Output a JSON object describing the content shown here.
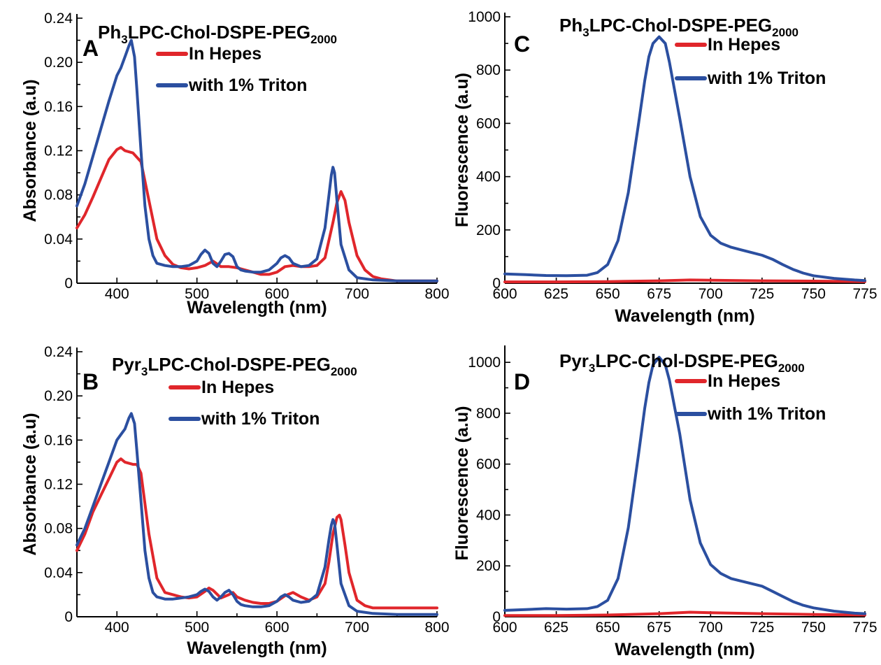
{
  "colors": {
    "hepes": "#e0262b",
    "triton": "#2b4fa0"
  },
  "chart_data": [
    {
      "panel": "A",
      "type": "line",
      "title": {
        "main": "Ph",
        "sub1": "3",
        "mid": "LPC-Chol-DSPE-PEG",
        "sub2": "2000"
      },
      "xlabel": "Wavelength (nm)",
      "ylabel": "Absorbance (a.u)",
      "xlim": [
        350,
        800
      ],
      "ylim": [
        0,
        0.24
      ],
      "xticks": [
        400,
        500,
        600,
        700,
        800
      ],
      "yticks": [
        0,
        0.04,
        0.08,
        0.12,
        0.16,
        0.2,
        0.24
      ],
      "ytick_labels": [
        "0",
        "0.04",
        "0.08",
        "0.12",
        "0.16",
        "0.20",
        "0.24"
      ],
      "series": [
        {
          "name": "In Hepes",
          "color": "#e0262b",
          "x": [
            350,
            360,
            370,
            380,
            390,
            400,
            405,
            410,
            420,
            430,
            440,
            450,
            460,
            470,
            480,
            490,
            500,
            510,
            520,
            530,
            540,
            550,
            560,
            570,
            580,
            590,
            600,
            610,
            620,
            630,
            640,
            650,
            660,
            670,
            675,
            680,
            685,
            690,
            700,
            710,
            720,
            730,
            750,
            800
          ],
          "y": [
            0.05,
            0.062,
            0.078,
            0.095,
            0.112,
            0.121,
            0.123,
            0.12,
            0.118,
            0.11,
            0.075,
            0.04,
            0.025,
            0.017,
            0.014,
            0.013,
            0.014,
            0.016,
            0.02,
            0.015,
            0.015,
            0.014,
            0.012,
            0.01,
            0.008,
            0.008,
            0.01,
            0.015,
            0.016,
            0.015,
            0.015,
            0.016,
            0.023,
            0.055,
            0.073,
            0.083,
            0.075,
            0.055,
            0.025,
            0.012,
            0.006,
            0.004,
            0.002,
            0.002
          ]
        },
        {
          "name": "with 1% Triton",
          "color": "#2b4fa0",
          "x": [
            350,
            360,
            370,
            380,
            390,
            400,
            405,
            410,
            415,
            418,
            422,
            425,
            430,
            435,
            440,
            445,
            450,
            460,
            470,
            480,
            490,
            500,
            505,
            510,
            515,
            520,
            525,
            530,
            535,
            540,
            545,
            550,
            555,
            560,
            570,
            580,
            590,
            600,
            605,
            610,
            615,
            620,
            630,
            640,
            650,
            660,
            665,
            668,
            670,
            672,
            675,
            680,
            690,
            700,
            720,
            750,
            800
          ],
          "y": [
            0.07,
            0.09,
            0.115,
            0.14,
            0.165,
            0.188,
            0.195,
            0.205,
            0.215,
            0.22,
            0.205,
            0.175,
            0.12,
            0.07,
            0.04,
            0.025,
            0.018,
            0.016,
            0.015,
            0.015,
            0.016,
            0.02,
            0.026,
            0.03,
            0.027,
            0.018,
            0.015,
            0.02,
            0.026,
            0.027,
            0.024,
            0.015,
            0.012,
            0.011,
            0.01,
            0.01,
            0.012,
            0.018,
            0.023,
            0.025,
            0.023,
            0.018,
            0.015,
            0.016,
            0.022,
            0.05,
            0.08,
            0.098,
            0.105,
            0.1,
            0.075,
            0.035,
            0.012,
            0.005,
            0.003,
            0.002,
            0.002
          ]
        }
      ]
    },
    {
      "panel": "C",
      "type": "line",
      "title": {
        "main": "Ph",
        "sub1": "3",
        "mid": "LPC-Chol-DSPE-PEG",
        "sub2": "2000"
      },
      "xlabel": "Wavelength (nm)",
      "ylabel": "Fluorescence (a.u)",
      "xlim": [
        600,
        775
      ],
      "ylim": [
        0,
        1000
      ],
      "xticks": [
        600,
        625,
        650,
        675,
        700,
        725,
        750,
        775
      ],
      "yticks": [
        0,
        200,
        400,
        600,
        800,
        1000
      ],
      "ytick_labels": [
        "0",
        "200",
        "400",
        "600",
        "800",
        "1000"
      ],
      "series": [
        {
          "name": "In Hepes",
          "color": "#e0262b",
          "x": [
            600,
            625,
            650,
            675,
            690,
            700,
            725,
            750,
            775
          ],
          "y": [
            5,
            5,
            6,
            9,
            12,
            11,
            9,
            8,
            6
          ]
        },
        {
          "name": "with 1% Triton",
          "color": "#2b4fa0",
          "x": [
            600,
            610,
            620,
            630,
            640,
            645,
            650,
            655,
            660,
            665,
            668,
            670,
            672,
            675,
            678,
            680,
            685,
            690,
            695,
            700,
            705,
            710,
            715,
            720,
            725,
            730,
            735,
            740,
            745,
            750,
            760,
            770,
            775
          ],
          "y": [
            35,
            32,
            29,
            28,
            30,
            40,
            70,
            160,
            340,
            600,
            760,
            850,
            900,
            925,
            900,
            830,
            620,
            400,
            250,
            180,
            150,
            135,
            125,
            115,
            105,
            90,
            70,
            52,
            38,
            28,
            18,
            12,
            10
          ]
        }
      ]
    },
    {
      "panel": "B",
      "type": "line",
      "title": {
        "main": "Pyr",
        "sub1": "3",
        "mid": "LPC-Chol-DSPE-PEG",
        "sub2": "2000"
      },
      "xlabel": "Wavelength (nm)",
      "ylabel": "Absorbance (a.u)",
      "xlim": [
        350,
        800
      ],
      "ylim": [
        0,
        0.24
      ],
      "xticks": [
        400,
        500,
        600,
        700,
        800
      ],
      "yticks": [
        0,
        0.04,
        0.08,
        0.12,
        0.16,
        0.2,
        0.24
      ],
      "ytick_labels": [
        "0",
        "0.04",
        "0.08",
        "0.12",
        "0.16",
        "0.20",
        "0.24"
      ],
      "series": [
        {
          "name": "In Hepes",
          "color": "#e0262b",
          "x": [
            350,
            360,
            370,
            380,
            390,
            400,
            405,
            410,
            420,
            425,
            430,
            440,
            450,
            460,
            470,
            480,
            490,
            500,
            510,
            515,
            520,
            530,
            540,
            545,
            550,
            560,
            570,
            580,
            590,
            600,
            610,
            620,
            630,
            640,
            650,
            660,
            665,
            670,
            675,
            678,
            680,
            685,
            690,
            700,
            710,
            720,
            750,
            800
          ],
          "y": [
            0.06,
            0.075,
            0.095,
            0.11,
            0.125,
            0.14,
            0.143,
            0.14,
            0.138,
            0.138,
            0.13,
            0.075,
            0.035,
            0.022,
            0.02,
            0.018,
            0.017,
            0.018,
            0.023,
            0.026,
            0.024,
            0.017,
            0.02,
            0.022,
            0.018,
            0.015,
            0.013,
            0.012,
            0.012,
            0.014,
            0.019,
            0.022,
            0.018,
            0.015,
            0.018,
            0.03,
            0.05,
            0.075,
            0.09,
            0.092,
            0.088,
            0.065,
            0.04,
            0.015,
            0.01,
            0.008,
            0.008,
            0.008
          ]
        },
        {
          "name": "with 1% Triton",
          "color": "#2b4fa0",
          "x": [
            350,
            360,
            370,
            380,
            390,
            400,
            405,
            410,
            415,
            418,
            422,
            425,
            430,
            435,
            440,
            445,
            450,
            460,
            470,
            480,
            490,
            500,
            505,
            510,
            515,
            520,
            525,
            530,
            535,
            540,
            545,
            550,
            555,
            560,
            570,
            580,
            590,
            600,
            605,
            610,
            615,
            620,
            630,
            640,
            650,
            660,
            665,
            668,
            670,
            672,
            675,
            680,
            690,
            700,
            720,
            750,
            800
          ],
          "y": [
            0.065,
            0.08,
            0.1,
            0.12,
            0.14,
            0.16,
            0.165,
            0.17,
            0.18,
            0.184,
            0.175,
            0.15,
            0.105,
            0.06,
            0.035,
            0.022,
            0.018,
            0.016,
            0.016,
            0.017,
            0.018,
            0.02,
            0.023,
            0.025,
            0.023,
            0.018,
            0.015,
            0.018,
            0.022,
            0.024,
            0.02,
            0.014,
            0.011,
            0.01,
            0.009,
            0.009,
            0.01,
            0.014,
            0.018,
            0.02,
            0.018,
            0.015,
            0.013,
            0.014,
            0.02,
            0.045,
            0.07,
            0.083,
            0.088,
            0.085,
            0.065,
            0.03,
            0.01,
            0.005,
            0.003,
            0.002,
            0.002
          ]
        }
      ]
    },
    {
      "panel": "D",
      "type": "line",
      "title": {
        "main": "Pyr",
        "sub1": "3",
        "mid": "LPC-Chol-DSPE-PEG",
        "sub2": "2000"
      },
      "xlabel": "Wavelength (nm)",
      "ylabel": "Fluorescence (a.u)",
      "xlim": [
        600,
        775
      ],
      "ylim": [
        0,
        1050
      ],
      "xticks": [
        600,
        625,
        650,
        675,
        700,
        725,
        750,
        775
      ],
      "yticks": [
        0,
        200,
        400,
        600,
        800,
        1000
      ],
      "ytick_labels": [
        "0",
        "200",
        "400",
        "600",
        "800",
        "1000"
      ],
      "series": [
        {
          "name": "In Hepes",
          "color": "#e0262b",
          "x": [
            600,
            625,
            650,
            675,
            690,
            700,
            725,
            750,
            775
          ],
          "y": [
            5,
            5,
            7,
            12,
            18,
            16,
            12,
            9,
            7
          ]
        },
        {
          "name": "with 1% Triton",
          "color": "#2b4fa0",
          "x": [
            600,
            610,
            620,
            630,
            640,
            645,
            650,
            655,
            660,
            665,
            668,
            670,
            672,
            675,
            678,
            680,
            685,
            690,
            695,
            700,
            705,
            710,
            715,
            720,
            725,
            730,
            735,
            740,
            745,
            750,
            760,
            770,
            775
          ],
          "y": [
            25,
            28,
            32,
            30,
            32,
            40,
            65,
            150,
            350,
            640,
            820,
            920,
            990,
            1020,
            990,
            930,
            720,
            460,
            290,
            205,
            170,
            150,
            140,
            130,
            120,
            100,
            80,
            60,
            45,
            35,
            22,
            14,
            12
          ]
        }
      ]
    }
  ]
}
